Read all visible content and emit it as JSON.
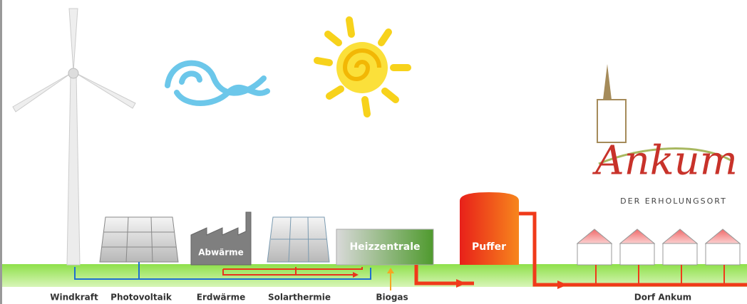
{
  "logo": {
    "name": "Ankum",
    "tagline": "DER ERHOLUNGSORT"
  },
  "boxes": {
    "waste_heat": "Abwärme",
    "heating_plant": "Heizzentrale",
    "buffer": "Puffer"
  },
  "labels": [
    "Windkraft",
    "Photovoltaik",
    "Erdwärme",
    "Solarthermie",
    "Biogas",
    "Dorf Ankum"
  ]
}
